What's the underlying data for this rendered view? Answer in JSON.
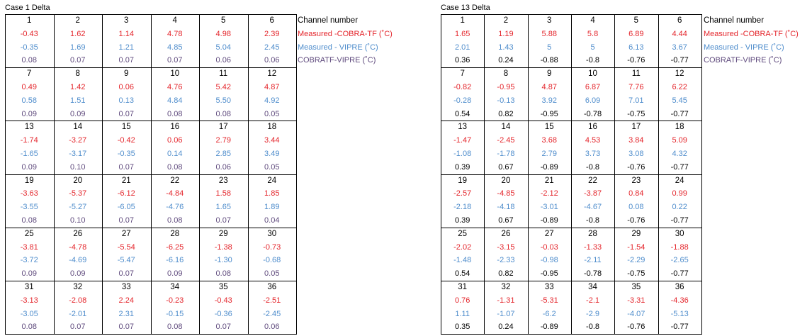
{
  "tables": [
    {
      "title": "Case 1 Delta",
      "legend": [
        "Channel number",
        "Measured -COBRA-TF (˚C)",
        "Measured - VIPRE (˚C)",
        "COBRATF-VIPRE (˚C)"
      ],
      "groups": [
        {
          "channels": [
            1,
            2,
            3,
            4,
            5,
            6
          ],
          "cobra": [
            "-0.43",
            "1.62",
            "1.14",
            "4.78",
            "4.98",
            "2.39"
          ],
          "vipre": [
            "-0.35",
            "1.69",
            "1.21",
            "4.85",
            "5.04",
            "2.45"
          ],
          "diff": [
            "0.08",
            "0.07",
            "0.07",
            "0.07",
            "0.06",
            "0.06"
          ]
        },
        {
          "channels": [
            7,
            8,
            9,
            10,
            11,
            12
          ],
          "cobra": [
            "0.49",
            "1.42",
            "0.06",
            "4.76",
            "5.42",
            "4.87"
          ],
          "vipre": [
            "0.58",
            "1.51",
            "0.13",
            "4.84",
            "5.50",
            "4.92"
          ],
          "diff": [
            "0.09",
            "0.09",
            "0.07",
            "0.08",
            "0.08",
            "0.05"
          ]
        },
        {
          "channels": [
            13,
            14,
            15,
            16,
            17,
            18
          ],
          "cobra": [
            "-1.74",
            "-3.27",
            "-0.42",
            "0.06",
            "2.79",
            "3.44"
          ],
          "vipre": [
            "-1.65",
            "-3.17",
            "-0.35",
            "0.14",
            "2.85",
            "3.49"
          ],
          "diff": [
            "0.09",
            "0.10",
            "0.07",
            "0.08",
            "0.06",
            "0.05"
          ]
        },
        {
          "channels": [
            19,
            20,
            21,
            22,
            23,
            24
          ],
          "cobra": [
            "-3.63",
            "-5.37",
            "-6.12",
            "-4.84",
            "1.58",
            "1.85"
          ],
          "vipre": [
            "-3.55",
            "-5.27",
            "-6.05",
            "-4.76",
            "1.65",
            "1.89"
          ],
          "diff": [
            "0.08",
            "0.10",
            "0.07",
            "0.08",
            "0.07",
            "0.04"
          ]
        },
        {
          "channels": [
            25,
            26,
            27,
            28,
            29,
            30
          ],
          "cobra": [
            "-3.81",
            "-4.78",
            "-5.54",
            "-6.25",
            "-1.38",
            "-0.73"
          ],
          "vipre": [
            "-3.72",
            "-4.69",
            "-5.47",
            "-6.16",
            "-1.30",
            "-0.68"
          ],
          "diff": [
            "0.09",
            "0.09",
            "0.07",
            "0.09",
            "0.08",
            "0.05"
          ]
        },
        {
          "channels": [
            31,
            32,
            33,
            34,
            35,
            36
          ],
          "cobra": [
            "-3.13",
            "-2.08",
            "2.24",
            "-0.23",
            "-0.43",
            "-2.51"
          ],
          "vipre": [
            "-3.05",
            "-2.01",
            "2.31",
            "-0.15",
            "-0.36",
            "-2.45"
          ],
          "diff": [
            "0.08",
            "0.07",
            "0.07",
            "0.08",
            "0.07",
            "0.06"
          ]
        }
      ]
    },
    {
      "title": "Case 13 Delta",
      "legend": [
        "Channel number",
        "Measured -COBRA-TF (˚C)",
        "Measured - VIPRE (˚C)",
        "COBRATF-VIPRE (˚C)"
      ],
      "groups": [
        {
          "channels": [
            1,
            2,
            3,
            4,
            5,
            6
          ],
          "cobra": [
            "1.65",
            "1.19",
            "5.88",
            "5.8",
            "6.89",
            "4.44"
          ],
          "vipre": [
            "2.01",
            "1.43",
            "5",
            "5",
            "6.13",
            "3.67"
          ],
          "diff": [
            "0.36",
            "0.24",
            "-0.88",
            "-0.8",
            "-0.76",
            "-0.77"
          ]
        },
        {
          "channels": [
            7,
            8,
            9,
            10,
            11,
            12
          ],
          "cobra": [
            "-0.82",
            "-0.95",
            "4.87",
            "6.87",
            "7.76",
            "6.22"
          ],
          "vipre": [
            "-0.28",
            "-0.13",
            "3.92",
            "6.09",
            "7.01",
            "5.45"
          ],
          "diff": [
            "0.54",
            "0.82",
            "-0.95",
            "-0.78",
            "-0.75",
            "-0.77"
          ]
        },
        {
          "channels": [
            13,
            14,
            15,
            16,
            17,
            18
          ],
          "cobra": [
            "-1.47",
            "-2.45",
            "3.68",
            "4.53",
            "3.84",
            "5.09"
          ],
          "vipre": [
            "-1.08",
            "-1.78",
            "2.79",
            "3.73",
            "3.08",
            "4.32"
          ],
          "diff": [
            "0.39",
            "0.67",
            "-0.89",
            "-0.8",
            "-0.76",
            "-0.77"
          ]
        },
        {
          "channels": [
            19,
            20,
            21,
            22,
            23,
            24
          ],
          "cobra": [
            "-2.57",
            "-4.85",
            "-2.12",
            "-3.87",
            "0.84",
            "0.99"
          ],
          "vipre": [
            "-2.18",
            "-4.18",
            "-3.01",
            "-4.67",
            "0.08",
            "0.22"
          ],
          "diff": [
            "0.39",
            "0.67",
            "-0.89",
            "-0.8",
            "-0.76",
            "-0.77"
          ]
        },
        {
          "channels": [
            25,
            26,
            27,
            28,
            29,
            30
          ],
          "cobra": [
            "-2.02",
            "-3.15",
            "-0.03",
            "-1.33",
            "-1.54",
            "-1.88"
          ],
          "vipre": [
            "-1.48",
            "-2.33",
            "-0.98",
            "-2.11",
            "-2.29",
            "-2.65"
          ],
          "diff": [
            "0.54",
            "0.82",
            "-0.95",
            "-0.78",
            "-0.75",
            "-0.77"
          ]
        },
        {
          "channels": [
            31,
            32,
            33,
            34,
            35,
            36
          ],
          "cobra": [
            "0.76",
            "-1.31",
            "-5.31",
            "-2.1",
            "-3.31",
            "-4.36"
          ],
          "vipre": [
            "1.11",
            "-1.07",
            "-6.2",
            "-2.9",
            "-4.07",
            "-5.13"
          ],
          "diff": [
            "0.35",
            "0.24",
            "-0.89",
            "-0.8",
            "-0.76",
            "-0.77"
          ]
        }
      ]
    }
  ]
}
